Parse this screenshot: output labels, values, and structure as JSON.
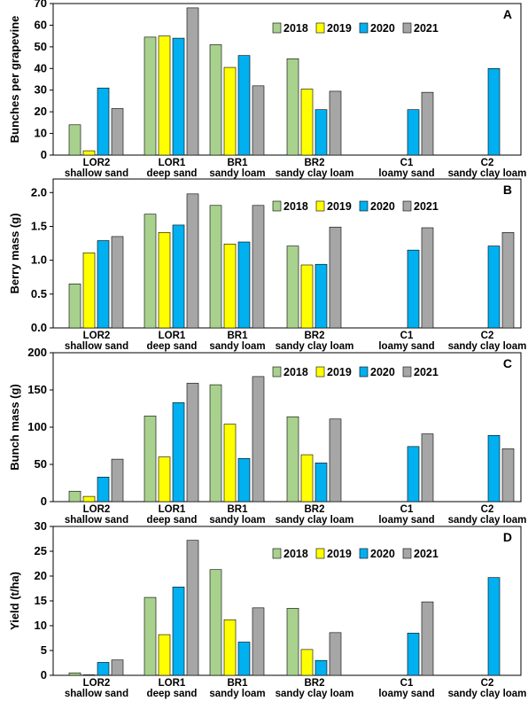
{
  "colors": {
    "2018": "#a9d18e",
    "2019": "#ffff00",
    "2020": "#00b0f0",
    "2021": "#a6a6a6",
    "stroke": "#000000"
  },
  "chart_data": [
    {
      "type": "bar",
      "panel_label": "A",
      "ylabel": "Bunches per grapevine",
      "ylim": [
        0,
        70
      ],
      "yticks": [
        "0",
        "10",
        "20",
        "30",
        "40",
        "50",
        "60",
        "70"
      ],
      "categories": [
        {
          "name": "LOR2",
          "soil": "shallow sand"
        },
        {
          "name": "LOR1",
          "soil": "deep sand"
        },
        {
          "name": "BR1",
          "soil": "sandy loam"
        },
        {
          "name": "BR2",
          "soil": "sandy clay loam"
        },
        {
          "name": "C1",
          "soil": "loamy sand"
        },
        {
          "name": "C2",
          "soil": "sandy clay loam"
        }
      ],
      "series": [
        {
          "name": "2018",
          "values": [
            14,
            54.5,
            51,
            44.5,
            null,
            null
          ]
        },
        {
          "name": "2019",
          "values": [
            2,
            55,
            40.5,
            30.5,
            null,
            null
          ]
        },
        {
          "name": "2020",
          "values": [
            31,
            54,
            46,
            21,
            21,
            40
          ]
        },
        {
          "name": "2021",
          "values": [
            21.5,
            68,
            32,
            29.5,
            29,
            null
          ]
        }
      ],
      "legend_position": "top-right",
      "grid": false
    },
    {
      "type": "bar",
      "panel_label": "B",
      "ylabel": "Berry mass (g)",
      "ylim": [
        0,
        2.2
      ],
      "yticks": [
        "0.0",
        "0.5",
        "1.0",
        "1.5",
        "2.0"
      ],
      "categories": [
        {
          "name": "LOR2",
          "soil": "shallow sand"
        },
        {
          "name": "LOR1",
          "soil": "deep sand"
        },
        {
          "name": "BR1",
          "soil": "sandy loam"
        },
        {
          "name": "BR2",
          "soil": "sandy clay loam"
        },
        {
          "name": "C1",
          "soil": "loamy sand"
        },
        {
          "name": "C2",
          "soil": "sandy clay loam"
        }
      ],
      "series": [
        {
          "name": "2018",
          "values": [
            0.65,
            1.68,
            1.81,
            1.21,
            null,
            null
          ]
        },
        {
          "name": "2019",
          "values": [
            1.11,
            1.41,
            1.24,
            0.93,
            null,
            null
          ]
        },
        {
          "name": "2020",
          "values": [
            1.29,
            1.52,
            1.27,
            0.94,
            1.15,
            1.21
          ]
        },
        {
          "name": "2021",
          "values": [
            1.35,
            1.98,
            1.81,
            1.49,
            1.48,
            1.41
          ]
        }
      ],
      "legend_position": "top-right",
      "grid": false
    },
    {
      "type": "bar",
      "panel_label": "C",
      "ylabel": "Bunch mass (g)",
      "ylim": [
        0,
        200
      ],
      "yticks": [
        "0",
        "50",
        "100",
        "150",
        "200"
      ],
      "categories": [
        {
          "name": "LOR2",
          "soil": "shallow sand"
        },
        {
          "name": "LOR1",
          "soil": "deep sand"
        },
        {
          "name": "BR1",
          "soil": "sandy loam"
        },
        {
          "name": "BR2",
          "soil": "sandy clay loam"
        },
        {
          "name": "C1",
          "soil": "loamy sand"
        },
        {
          "name": "C2",
          "soil": "sandy clay loam"
        }
      ],
      "series": [
        {
          "name": "2018",
          "values": [
            14,
            115,
            157,
            114,
            null,
            null
          ]
        },
        {
          "name": "2019",
          "values": [
            7,
            60,
            104,
            63,
            null,
            null
          ]
        },
        {
          "name": "2020",
          "values": [
            33,
            133,
            58,
            52,
            74,
            89
          ]
        },
        {
          "name": "2021",
          "values": [
            57,
            159,
            168,
            111,
            91,
            71
          ]
        }
      ],
      "legend_position": "top-right",
      "grid": false
    },
    {
      "type": "bar",
      "panel_label": "D",
      "ylabel": "Yield (t/ha)",
      "ylim": [
        0,
        30
      ],
      "yticks": [
        "0",
        "5",
        "10",
        "15",
        "20",
        "25",
        "30"
      ],
      "categories": [
        {
          "name": "LOR2",
          "soil": "shallow sand"
        },
        {
          "name": "LOR1",
          "soil": "deep sand"
        },
        {
          "name": "BR1",
          "soil": "sandy loam"
        },
        {
          "name": "BR2",
          "soil": "sandy clay loam"
        },
        {
          "name": "C1",
          "soil": "loamy sand"
        },
        {
          "name": "C2",
          "soil": "sandy clay loam"
        }
      ],
      "series": [
        {
          "name": "2018",
          "values": [
            0.5,
            15.7,
            21.3,
            13.5,
            null,
            null
          ]
        },
        {
          "name": "2019",
          "values": [
            0.1,
            8.2,
            11.2,
            5.2,
            null,
            null
          ]
        },
        {
          "name": "2020",
          "values": [
            2.6,
            17.8,
            6.7,
            3.0,
            8.5,
            19.7
          ]
        },
        {
          "name": "2021",
          "values": [
            3.1,
            27.2,
            13.6,
            8.6,
            14.8,
            null
          ]
        }
      ],
      "legend_position": "top-right",
      "grid": false
    }
  ]
}
